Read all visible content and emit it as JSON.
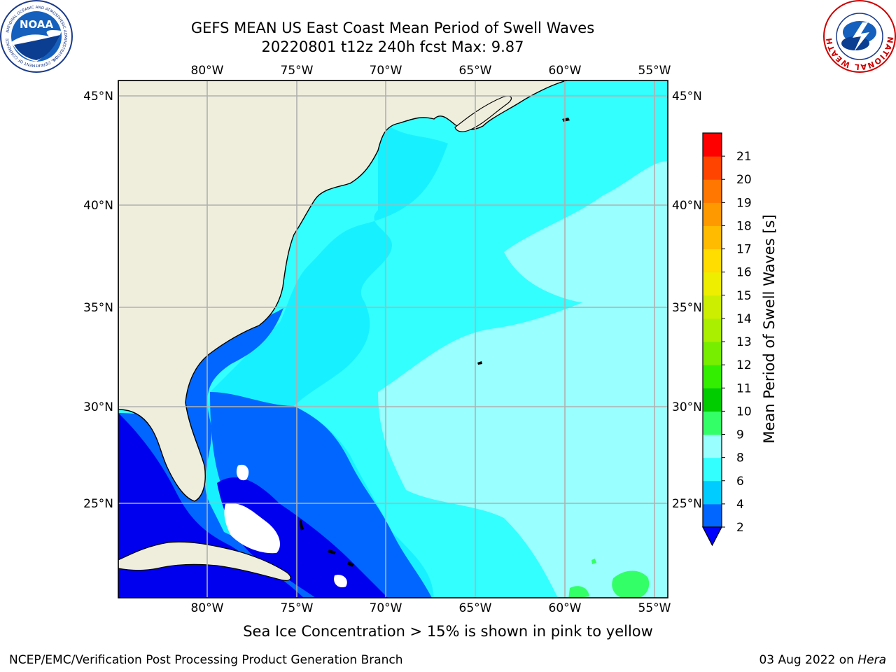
{
  "title": {
    "line1": "GEFS MEAN US East Coast Mean Period of Swell Waves",
    "line2": "20220801 t12z 240h fcst   Max: 9.87"
  },
  "logos": {
    "left": {
      "icon": "noaa-logo",
      "text": "NOAA",
      "ring_text": "NATIONAL OCEANIC AND ATMOSPHERIC ADMINISTRATION",
      "ring_text_bottom": "U.S. DEPARTMENT OF COMMERCE"
    },
    "right": {
      "icon": "nws-logo",
      "ring_text": "NATIONAL WEATHER SERVICE"
    }
  },
  "map": {
    "lon_ticks": [
      "80°W",
      "75°W",
      "70°W",
      "65°W",
      "60°W",
      "55°W"
    ],
    "lat_ticks": [
      "45°N",
      "40°N",
      "35°N",
      "30°N",
      "25°N"
    ],
    "land_color": "#efeedd",
    "grid_color": "#b0b0b0"
  },
  "colorbar": {
    "label": "Mean Period of Swell Waves [s]",
    "ticks": [
      "2",
      "4",
      "6",
      "8",
      "9",
      "10",
      "11",
      "12",
      "13",
      "14",
      "15",
      "16",
      "17",
      "18",
      "19",
      "20",
      "21"
    ],
    "colors": [
      "#0066ff",
      "#00ccff",
      "#33ffff",
      "#99ffff",
      "#33ff66",
      "#00cc00",
      "#33ee00",
      "#77ee00",
      "#aaee00",
      "#ccee00",
      "#eeee00",
      "#ffdd00",
      "#ffbb00",
      "#ff9900",
      "#ff7700",
      "#ff4400",
      "#ff0000"
    ],
    "extend_color": "#0000ff"
  },
  "note": "Sea Ice Concentration > 15% is shown in pink to yellow",
  "footer": {
    "left": "NCEP/EMC/Verification Post Processing Product Generation Branch",
    "date": "03 Aug 2022 on ",
    "machine": "Hera"
  }
}
